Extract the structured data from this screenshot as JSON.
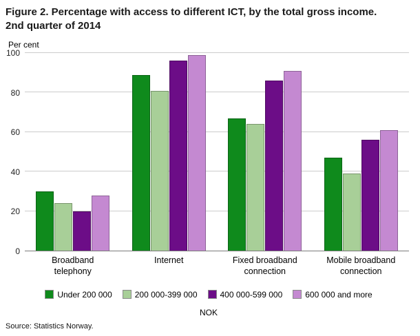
{
  "figure": {
    "title_line1": "Figure 2. Percentage with access to different ICT, by the total gross income.",
    "title_line2": "2nd quarter of 2014",
    "y_axis_label": "Per cent",
    "legend_axis_label": "NOK",
    "source": "Source: Statistics Norway."
  },
  "chart_data": {
    "type": "bar",
    "title": "Figure 2. Percentage with access to different ICT, by the total gross income. 2nd quarter of 2014",
    "xlabel": "NOK",
    "ylabel": "Per cent",
    "ylim": [
      0,
      100
    ],
    "yticks": [
      0,
      20,
      40,
      60,
      80,
      100
    ],
    "grid": true,
    "legend_position": "bottom",
    "categories": [
      "Broadband telephony",
      "Internet",
      "Fixed broadband connection",
      "Mobile broadband connection"
    ],
    "series": [
      {
        "name": "Under 200 000",
        "color": "#0f8a1c",
        "values": [
          30,
          89,
          67,
          47
        ]
      },
      {
        "name": "200 000-399 000",
        "color": "#a8cf98",
        "values": [
          24,
          81,
          64,
          39
        ]
      },
      {
        "name": "400 000-599 000",
        "color": "#6c0d87",
        "values": [
          20,
          96,
          86,
          56
        ]
      },
      {
        "name": "600 000 and more",
        "color": "#c489d1",
        "values": [
          28,
          99,
          91,
          61
        ]
      }
    ]
  }
}
